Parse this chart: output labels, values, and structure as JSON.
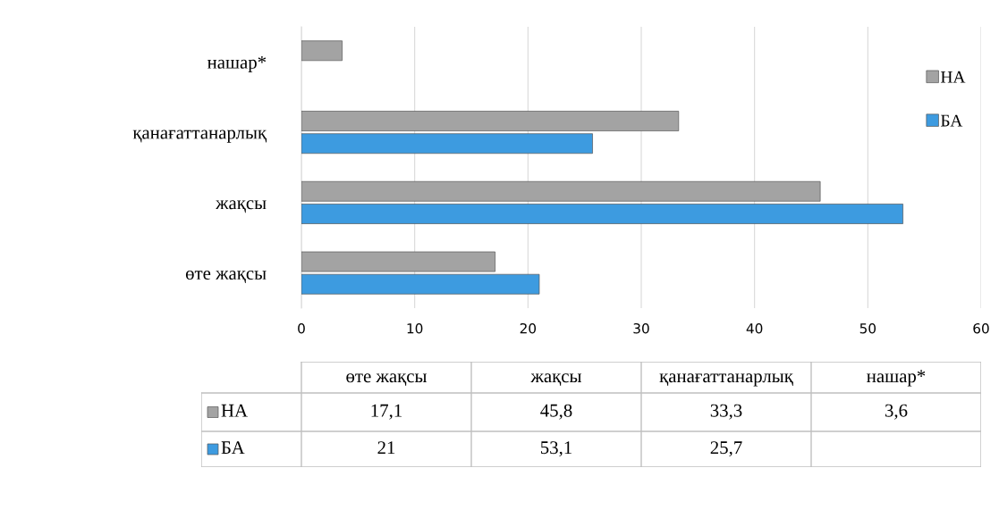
{
  "chart_data": {
    "type": "bar",
    "orientation": "horizontal",
    "categories": [
      "нашар*",
      "қанағаттанарлық",
      "жақсы",
      "өте жақсы"
    ],
    "series": [
      {
        "name": "НА",
        "color": "#a3a3a3",
        "values": [
          3.6,
          33.3,
          45.8,
          17.1
        ]
      },
      {
        "name": "БА",
        "color": "#3d9be0",
        "values": [
          null,
          25.7,
          53.1,
          21
        ]
      }
    ],
    "annotations": [
      "17,1",
      "45,8",
      "33,3",
      "3,6",
      "21",
      "53,1",
      "25,7"
    ],
    "xlim": [
      0,
      60
    ],
    "xticks": [
      0,
      10,
      20,
      30,
      40,
      50,
      60
    ],
    "grid": "x",
    "legend": "top right"
  }
}
